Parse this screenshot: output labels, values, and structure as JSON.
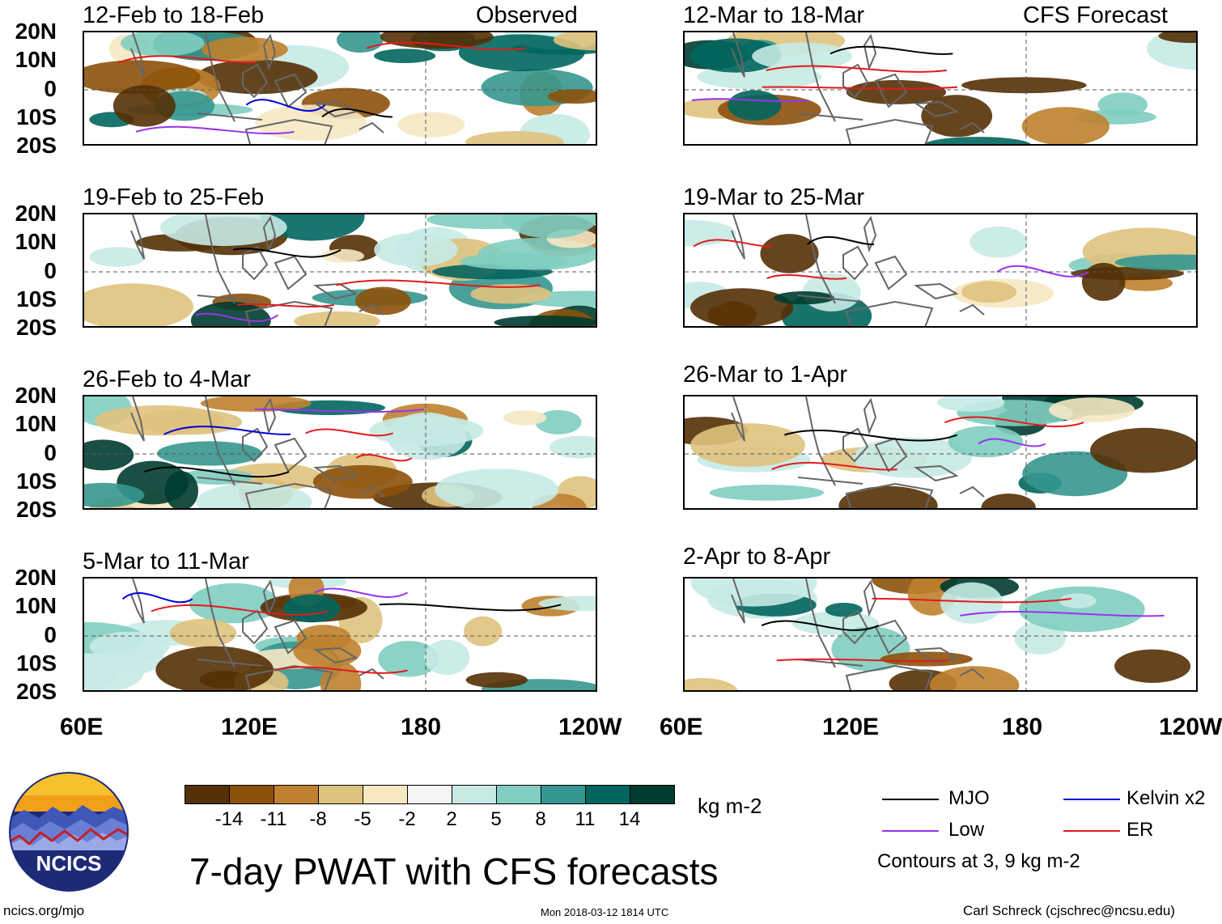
{
  "panels": {
    "left": [
      {
        "title": "12-Feb to 18-Feb",
        "tag": "Observed"
      },
      {
        "title": "19-Feb to 25-Feb",
        "tag": ""
      },
      {
        "title": "26-Feb to 4-Mar",
        "tag": ""
      },
      {
        "title": "5-Mar to 11-Mar",
        "tag": ""
      }
    ],
    "right": [
      {
        "title": "12-Mar to 18-Mar",
        "tag": "CFS Forecast"
      },
      {
        "title": "19-Mar to 25-Mar",
        "tag": ""
      },
      {
        "title": "26-Mar to 1-Apr",
        "tag": ""
      },
      {
        "title": "2-Apr to 8-Apr",
        "tag": ""
      }
    ]
  },
  "axes": {
    "lat_labels": [
      "20N",
      "10N",
      "0",
      "10S",
      "20S"
    ],
    "lon_labels": [
      "60E",
      "120E",
      "180",
      "120W"
    ]
  },
  "colorbar": {
    "unit": "kg m-2",
    "ticks": [
      "-14",
      "-11",
      "-8",
      "-5",
      "-2",
      "2",
      "5",
      "8",
      "11",
      "14"
    ],
    "colors": [
      "#543005",
      "#8c510a",
      "#bf812d",
      "#dfc27d",
      "#f6e8c3",
      "#f5f5f5",
      "#c7eae5",
      "#80cdc1",
      "#35978f",
      "#01665e",
      "#003c30"
    ]
  },
  "legend": {
    "mjo": "MJO",
    "kelvin": "Kelvin x2",
    "low": "Low",
    "er": "ER",
    "note": "Contours at 3, 9 kg m-2",
    "colors": {
      "mjo": "#000000",
      "kelvin": "#0000dd",
      "low": "#9933ee",
      "er": "#e31a1c"
    }
  },
  "footer": {
    "logo_text": "NCICS",
    "title": "7-day PWAT with CFS forecasts",
    "url": "ncics.org/mjo",
    "timestamp": "Mon 2018-03-12 1814 UTC",
    "credit": "Carl Schreck (cjschrec@ncsu.edu)"
  }
}
